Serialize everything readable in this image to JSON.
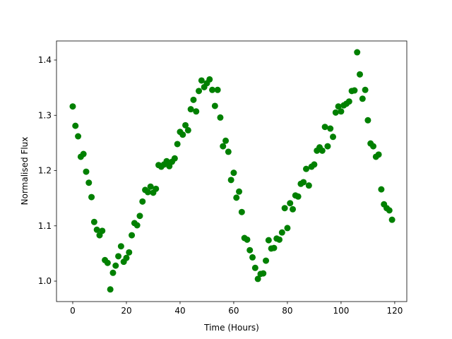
{
  "chart_data": {
    "type": "scatter",
    "xlabel": "Time (Hours)",
    "ylabel": "Normalised Flux",
    "color": "#008000",
    "x": [
      0,
      1,
      2,
      3,
      4,
      5,
      6,
      7,
      8,
      9,
      10,
      11,
      12,
      13,
      14,
      15,
      16,
      17,
      18,
      19,
      20,
      21,
      22,
      23,
      24,
      25,
      26,
      27,
      28,
      29,
      30,
      31,
      32,
      33,
      34,
      35,
      36,
      37,
      38,
      39,
      40,
      41,
      42,
      43,
      44,
      45,
      46,
      47,
      48,
      49,
      50,
      51,
      52,
      53,
      54,
      55,
      56,
      57,
      58,
      59,
      60,
      61,
      62,
      63,
      64,
      65,
      66,
      67,
      68,
      69,
      70,
      71,
      72,
      73,
      74,
      75,
      76,
      77,
      78,
      79,
      80,
      81,
      82,
      83,
      84,
      85,
      86,
      87,
      88,
      89,
      90,
      91,
      92,
      93,
      94,
      95,
      96,
      97,
      98,
      99,
      100,
      101,
      102,
      103,
      104,
      105,
      106,
      107,
      108,
      109,
      110,
      111,
      112,
      113,
      114,
      115,
      116,
      117,
      118,
      119
    ],
    "y": [
      1.316,
      1.281,
      1.262,
      1.225,
      1.23,
      1.198,
      1.178,
      1.152,
      1.107,
      1.093,
      1.083,
      1.091,
      1.038,
      1.033,
      0.985,
      1.015,
      1.028,
      1.045,
      1.063,
      1.035,
      1.042,
      1.052,
      1.083,
      1.105,
      1.101,
      1.118,
      1.144,
      1.165,
      1.161,
      1.171,
      1.16,
      1.167,
      1.21,
      1.207,
      1.211,
      1.217,
      1.208,
      1.216,
      1.222,
      1.248,
      1.27,
      1.265,
      1.282,
      1.273,
      1.311,
      1.328,
      1.307,
      1.344,
      1.363,
      1.351,
      1.358,
      1.365,
      1.346,
      1.317,
      1.346,
      1.296,
      1.244,
      1.254,
      1.234,
      1.183,
      1.196,
      1.151,
      1.162,
      1.125,
      1.078,
      1.075,
      1.056,
      1.043,
      1.024,
      1.004,
      1.013,
      1.014,
      1.037,
      1.074,
      1.059,
      1.06,
      1.077,
      1.075,
      1.088,
      1.132,
      1.096,
      1.141,
      1.13,
      1.155,
      1.153,
      1.176,
      1.179,
      1.203,
      1.173,
      1.207,
      1.211,
      1.236,
      1.242,
      1.236,
      1.279,
      1.244,
      1.276,
      1.261,
      1.305,
      1.316,
      1.307,
      1.318,
      1.321,
      1.325,
      1.344,
      1.345,
      1.414,
      1.374,
      1.33,
      1.346,
      1.291,
      1.249,
      1.244,
      1.225,
      1.229,
      1.166,
      1.139,
      1.132,
      1.128,
      1.111
    ],
    "xlim": [
      -6.05,
      124.5
    ],
    "ylim": [
      0.963,
      1.4345
    ],
    "xticks": [
      0,
      20,
      40,
      60,
      80,
      100,
      120
    ],
    "yticks": [
      {
        "value": 1.0,
        "label": "1.0"
      },
      {
        "value": 1.1,
        "label": "1.1"
      },
      {
        "value": 1.2,
        "label": "1.2"
      },
      {
        "value": 1.3,
        "label": "1.3"
      },
      {
        "value": 1.4,
        "label": "1.4"
      }
    ]
  }
}
